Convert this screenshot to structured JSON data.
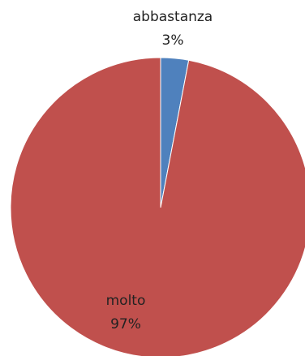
{
  "chart_data": {
    "type": "pie",
    "title": "",
    "slices": [
      {
        "label": "abbastanza",
        "value": 3,
        "value_label": "3%",
        "color": "#4F81BD"
      },
      {
        "label": "molto",
        "value": 97,
        "value_label": "97%",
        "color": "#C0504D"
      }
    ],
    "start_angle": "12 o'clock",
    "direction": "clockwise",
    "legend": "none"
  }
}
